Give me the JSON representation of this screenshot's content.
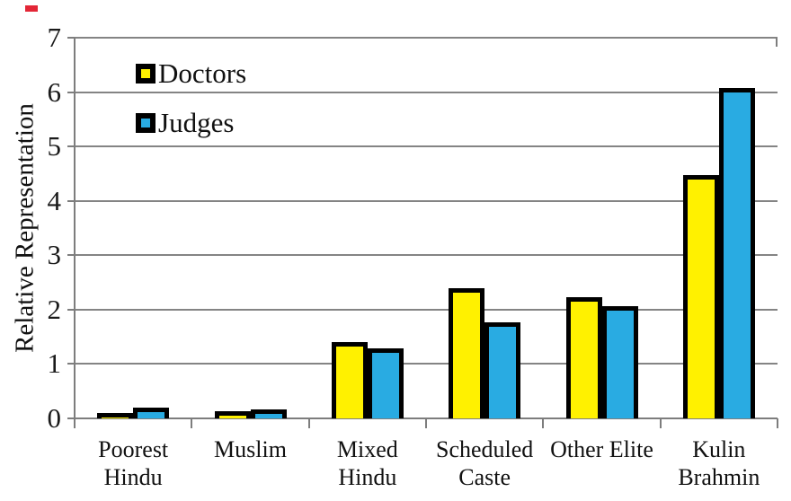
{
  "chart_data": {
    "type": "bar",
    "categories": [
      "Poorest Hindu",
      "Muslim",
      "Mixed Hindu",
      "Scheduled Caste",
      "Other Elite",
      "Kulin Brahmin"
    ],
    "category_lines": [
      [
        "Poorest",
        "Hindu"
      ],
      [
        "Muslim"
      ],
      [
        "Mixed",
        "Hindu"
      ],
      [
        "Scheduled",
        "Caste"
      ],
      [
        "Other Elite"
      ],
      [
        "Kulin",
        "Brahmin"
      ]
    ],
    "series": [
      {
        "name": "Doctors",
        "color": "#FFF100",
        "values": [
          0.1,
          0.13,
          1.4,
          2.39,
          2.23,
          4.47
        ]
      },
      {
        "name": "Judges",
        "color": "#29ABE2",
        "values": [
          0.2,
          0.16,
          1.29,
          1.76,
          2.07,
          6.08
        ]
      }
    ],
    "title": "",
    "xlabel": "",
    "ylabel": "Relative Representation",
    "ylim": [
      0,
      7
    ],
    "yticks": [
      0,
      1,
      2,
      3,
      4,
      5,
      6,
      7
    ],
    "grid": true,
    "legend_position": "top-left-inside",
    "bar_border_color": "#000000",
    "gridline_color": "#848484",
    "axis_color": "#7d7d7d"
  },
  "decorations": {
    "red_mark_color": "#e32636"
  }
}
